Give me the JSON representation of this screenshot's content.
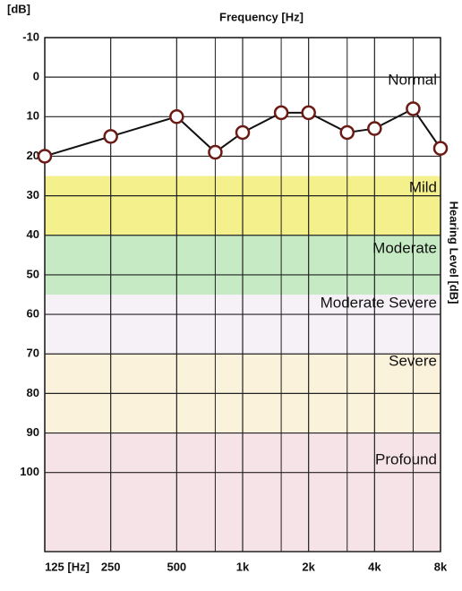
{
  "chart_data": {
    "type": "line",
    "title": "Frequency [Hz]",
    "y_unit_label": "[dB]",
    "y_axis_label": "Hearing Level [dB]",
    "x": [
      125,
      250,
      500,
      750,
      1000,
      1500,
      2000,
      3000,
      4000,
      6000,
      8000
    ],
    "values": [
      20,
      15,
      10,
      19,
      14,
      9,
      9,
      14,
      13,
      8,
      18
    ],
    "color": "#6b1a14",
    "log_x": true,
    "xlim": [
      125,
      8000
    ],
    "xticks": [
      {
        "value": 125,
        "label": "125 [Hz]"
      },
      250,
      500,
      {
        "value": 1000,
        "label": "1k"
      },
      {
        "value": 2000,
        "label": "2k"
      },
      {
        "value": 4000,
        "label": "4k"
      },
      {
        "value": 8000,
        "label": "8k"
      }
    ],
    "xminorticks": [
      750,
      1500,
      3000,
      6000
    ],
    "ylim": [
      -10,
      120
    ],
    "y_inverted": true,
    "yticks": [
      -10,
      0,
      10,
      20,
      30,
      40,
      50,
      60,
      70,
      80,
      90,
      100
    ],
    "grid": true,
    "bands": [
      {
        "label": "Normal",
        "from": -10,
        "to": 25,
        "color": "#ffffff"
      },
      {
        "label": "Mild",
        "from": 25,
        "to": 40,
        "color": "#f4f08c"
      },
      {
        "label": "Moderate",
        "from": 40,
        "to": 55,
        "color": "#c6ebc4"
      },
      {
        "label": "Moderate Severe",
        "from": 55,
        "to": 70,
        "color": "#f6f1f7"
      },
      {
        "label": "Severe",
        "from": 70,
        "to": 90,
        "color": "#fbf2dc"
      },
      {
        "label": "Profound",
        "from": 90,
        "to": 120,
        "color": "#f5e3e8"
      }
    ]
  }
}
